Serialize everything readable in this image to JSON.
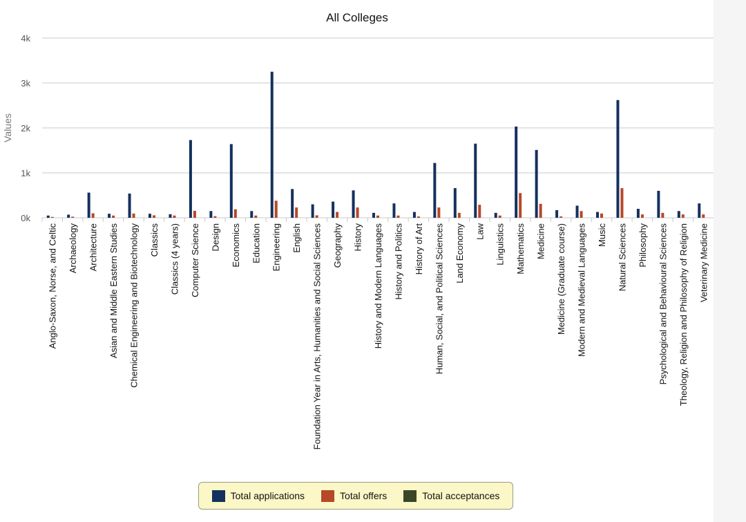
{
  "chart_data": {
    "type": "bar",
    "title": "All Colleges",
    "xlabel": "",
    "ylabel": "Values",
    "ylim": [
      0,
      4000
    ],
    "yticks": [
      0,
      1000,
      2000,
      3000,
      4000
    ],
    "ytick_labels": [
      "0k",
      "1k",
      "2k",
      "3k",
      "4k"
    ],
    "grid": true,
    "legend_position": "bottom-center",
    "categories": [
      "Anglo-Saxon, Norse, and Celtic",
      "Archaeology",
      "Architecture",
      "Asian and Middle Eastern Studies",
      "Chemical Engineering and Biotechnology",
      "Classics",
      "Classics (4 years)",
      "Computer Science",
      "Design",
      "Economics",
      "Education",
      "Engineering",
      "English",
      "Foundation Year in Arts, Humanities and Social Sciences",
      "Geography",
      "History",
      "History and Modern Languages",
      "History and Politics",
      "History of Art",
      "Human, Social, and Political Sciences",
      "Land Economy",
      "Law",
      "Linguistics",
      "Mathematics",
      "Medicine",
      "Medicine (Graduate course)",
      "Modern and Medieval Languages",
      "Music",
      "Natural Sciences",
      "Philosophy",
      "Psychological and Behavioural Sciences",
      "Theology, Religion and Philosophy of Religion",
      "Veterinary Medicine"
    ],
    "series": [
      {
        "name": "Total applications",
        "color": "#14305e",
        "values": [
          50,
          70,
          560,
          90,
          540,
          90,
          80,
          1730,
          150,
          1640,
          150,
          3250,
          640,
          300,
          360,
          610,
          110,
          320,
          130,
          1220,
          660,
          1650,
          110,
          2030,
          1510,
          170,
          270,
          130,
          2620,
          200,
          600,
          150,
          320
        ]
      },
      {
        "name": "Total offers",
        "color": "#b6482a",
        "values": [
          20,
          25,
          100,
          50,
          95,
          55,
          50,
          155,
          35,
          190,
          50,
          380,
          230,
          55,
          130,
          230,
          50,
          50,
          30,
          230,
          110,
          290,
          50,
          550,
          310,
          30,
          150,
          95,
          660,
          75,
          110,
          75,
          75
        ]
      },
      {
        "name": "Total acceptances",
        "color": "#3a4626",
        "values": [
          0,
          0,
          0,
          0,
          0,
          0,
          0,
          0,
          0,
          0,
          0,
          0,
          0,
          0,
          0,
          0,
          0,
          0,
          0,
          0,
          0,
          0,
          0,
          0,
          0,
          0,
          0,
          0,
          0,
          0,
          0,
          0,
          0
        ]
      }
    ]
  }
}
